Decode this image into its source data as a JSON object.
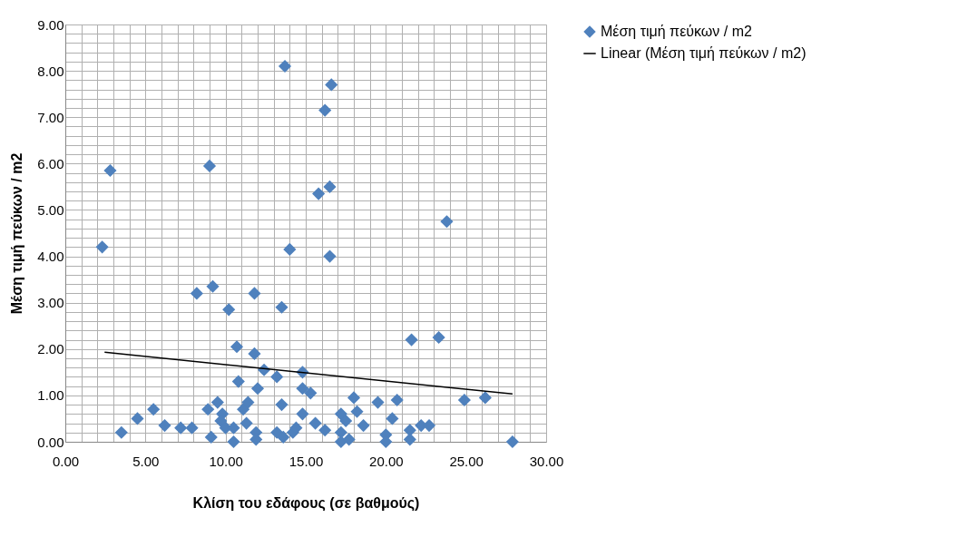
{
  "chart_data": {
    "type": "scatter",
    "xlabel": "Κλίση του εδάφους (σε βαθμούς)",
    "ylabel": "Μέση τιμή πεύκων / m2",
    "legend": "right",
    "grid": true,
    "xlim": [
      0,
      30
    ],
    "ylim": [
      0,
      9
    ],
    "xticks": [
      {
        "value": 0,
        "label": "0.00"
      },
      {
        "value": 1,
        "label": null
      },
      {
        "value": 2,
        "label": null
      },
      {
        "value": 3,
        "label": null
      },
      {
        "value": 4,
        "label": null
      },
      {
        "value": 5,
        "label": "5.00"
      },
      {
        "value": 6,
        "label": null
      },
      {
        "value": 7,
        "label": null
      },
      {
        "value": 8,
        "label": null
      },
      {
        "value": 9,
        "label": null
      },
      {
        "value": 10,
        "label": "10.00"
      },
      {
        "value": 11,
        "label": null
      },
      {
        "value": 12,
        "label": null
      },
      {
        "value": 13,
        "label": null
      },
      {
        "value": 14,
        "label": null
      },
      {
        "value": 15,
        "label": "15.00"
      },
      {
        "value": 16,
        "label": null
      },
      {
        "value": 17,
        "label": null
      },
      {
        "value": 18,
        "label": null
      },
      {
        "value": 19,
        "label": null
      },
      {
        "value": 20,
        "label": "20.00"
      },
      {
        "value": 21,
        "label": null
      },
      {
        "value": 22,
        "label": null
      },
      {
        "value": 23,
        "label": null
      },
      {
        "value": 24,
        "label": null
      },
      {
        "value": 25,
        "label": "25.00"
      },
      {
        "value": 26,
        "label": null
      },
      {
        "value": 27,
        "label": null
      },
      {
        "value": 28,
        "label": null
      },
      {
        "value": 29,
        "label": null
      },
      {
        "value": 30,
        "label": "30.00"
      }
    ],
    "yticks": [
      {
        "value": 0,
        "label": "0.00"
      },
      {
        "value": 0.2,
        "label": null
      },
      {
        "value": 0.4,
        "label": null
      },
      {
        "value": 0.6,
        "label": null
      },
      {
        "value": 0.8,
        "label": null
      },
      {
        "value": 1,
        "label": "1.00"
      },
      {
        "value": 1.2,
        "label": null
      },
      {
        "value": 1.4,
        "label": null
      },
      {
        "value": 1.6,
        "label": null
      },
      {
        "value": 1.8,
        "label": null
      },
      {
        "value": 2,
        "label": "2.00"
      },
      {
        "value": 2.2,
        "label": null
      },
      {
        "value": 2.4,
        "label": null
      },
      {
        "value": 2.6,
        "label": null
      },
      {
        "value": 2.8,
        "label": null
      },
      {
        "value": 3,
        "label": "3.00"
      },
      {
        "value": 3.2,
        "label": null
      },
      {
        "value": 3.4,
        "label": null
      },
      {
        "value": 3.6,
        "label": null
      },
      {
        "value": 3.8,
        "label": null
      },
      {
        "value": 4,
        "label": "4.00"
      },
      {
        "value": 4.2,
        "label": null
      },
      {
        "value": 4.4,
        "label": null
      },
      {
        "value": 4.6,
        "label": null
      },
      {
        "value": 4.8,
        "label": null
      },
      {
        "value": 5,
        "label": "5.00"
      },
      {
        "value": 5.2,
        "label": null
      },
      {
        "value": 5.4,
        "label": null
      },
      {
        "value": 5.6,
        "label": null
      },
      {
        "value": 5.8,
        "label": null
      },
      {
        "value": 6,
        "label": "6.00"
      },
      {
        "value": 6.2,
        "label": null
      },
      {
        "value": 6.4,
        "label": null
      },
      {
        "value": 6.6,
        "label": null
      },
      {
        "value": 6.8,
        "label": null
      },
      {
        "value": 7,
        "label": "7.00"
      },
      {
        "value": 7.2,
        "label": null
      },
      {
        "value": 7.4,
        "label": null
      },
      {
        "value": 7.6,
        "label": null
      },
      {
        "value": 7.8,
        "label": null
      },
      {
        "value": 8,
        "label": "8.00"
      },
      {
        "value": 8.2,
        "label": null
      },
      {
        "value": 8.4,
        "label": null
      },
      {
        "value": 8.6,
        "label": null
      },
      {
        "value": 8.8,
        "label": null
      },
      {
        "value": 9,
        "label": "9.00"
      }
    ],
    "series": [
      {
        "name": "Μέση τιμή πεύκων / m2",
        "color": "#4f81bd",
        "marker": "diamond",
        "x": [
          2.3,
          2.8,
          3.5,
          4.5,
          5.5,
          6.2,
          7.2,
          7.9,
          8.2,
          9.2,
          9.0,
          8.9,
          9.1,
          9.5,
          9.8,
          9.7,
          10.0,
          10.2,
          10.7,
          10.8,
          10.5,
          10.5,
          11.1,
          11.4,
          11.3,
          11.8,
          11.8,
          12.0,
          12.4,
          11.9,
          11.9,
          13.5,
          13.2,
          13.5,
          13.2,
          13.6,
          13.7,
          14.0,
          14.2,
          14.4,
          14.8,
          14.8,
          15.3,
          14.8,
          15.6,
          16.6,
          16.2,
          15.8,
          16.5,
          16.5,
          23.8,
          21.6,
          23.3,
          24.9,
          26.2,
          27.9,
          16.2,
          17.2,
          17.5,
          18.0,
          18.2,
          17.2,
          17.2,
          17.7,
          18.6,
          19.5,
          20.7,
          20.4,
          20.0,
          20.0,
          21.5,
          21.5,
          22.2,
          22.7
        ],
        "values": [
          4.2,
          5.85,
          0.2,
          0.5,
          0.7,
          0.35,
          0.3,
          0.3,
          3.2,
          3.35,
          5.95,
          0.7,
          0.1,
          0.85,
          0.6,
          0.45,
          0.3,
          2.85,
          2.05,
          1.3,
          0.3,
          0.0,
          0.7,
          0.85,
          0.4,
          3.2,
          1.9,
          1.15,
          1.55,
          0.2,
          0.05,
          2.9,
          1.4,
          0.8,
          0.2,
          0.1,
          8.1,
          4.15,
          0.2,
          0.3,
          1.5,
          1.15,
          1.05,
          0.6,
          0.4,
          7.7,
          7.15,
          5.35,
          5.5,
          4.0,
          4.75,
          2.2,
          2.25,
          0.9,
          0.95,
          0.0,
          0.25,
          0.6,
          0.45,
          0.95,
          0.65,
          0.2,
          0.0,
          0.05,
          0.35,
          0.85,
          0.9,
          0.5,
          0.15,
          0.0,
          0.25,
          0.05,
          0.35,
          0.35
        ]
      },
      {
        "name": "Linear (Μέση τιμή πεύκων / m2)",
        "type": "line",
        "color": "#000000",
        "line_style": "solid",
        "x": [
          2.45,
          27.9
        ],
        "values": [
          1.93,
          1.03
        ]
      }
    ]
  }
}
